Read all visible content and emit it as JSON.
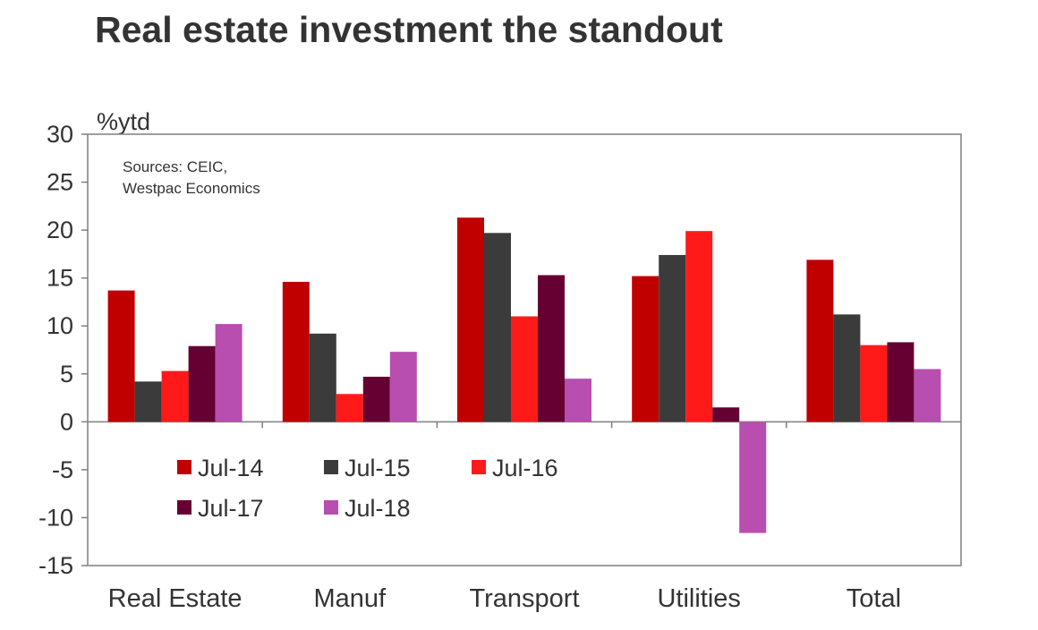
{
  "title": "Real estate investment the standout",
  "colors": {
    "series": [
      "#c00000",
      "#3b3b3b",
      "#ff1a1a",
      "#660033",
      "#b84eaf"
    ],
    "axis": "#7f7f7f",
    "text": "#333333"
  },
  "chart_data": {
    "type": "bar",
    "title": "Real estate investment the standout",
    "ylabel": "%ytd",
    "xlabel": "",
    "ylim": [
      -15,
      30
    ],
    "yticks": [
      30,
      25,
      20,
      15,
      10,
      5,
      0,
      -5,
      -10,
      -15
    ],
    "grid": false,
    "legend_placement": "bottom-left inside plot",
    "annotation": "Sources: CEIC,\nWestpac Economics",
    "annotation_lines": [
      "Sources: CEIC,",
      "Westpac Economics"
    ],
    "categories": [
      "Real Estate",
      "Manuf",
      "Transport",
      "Utilities",
      "Total"
    ],
    "series": [
      {
        "name": "Jul-14",
        "values": [
          13.7,
          14.6,
          21.3,
          15.2,
          16.9
        ]
      },
      {
        "name": "Jul-15",
        "values": [
          4.2,
          9.2,
          19.7,
          17.4,
          11.2
        ]
      },
      {
        "name": "Jul-16",
        "values": [
          5.3,
          2.9,
          11.0,
          19.9,
          8.0
        ]
      },
      {
        "name": "Jul-17",
        "values": [
          7.9,
          4.7,
          15.3,
          1.5,
          8.3
        ]
      },
      {
        "name": "Jul-18",
        "values": [
          10.2,
          7.3,
          4.5,
          -11.6,
          5.5
        ]
      }
    ]
  }
}
